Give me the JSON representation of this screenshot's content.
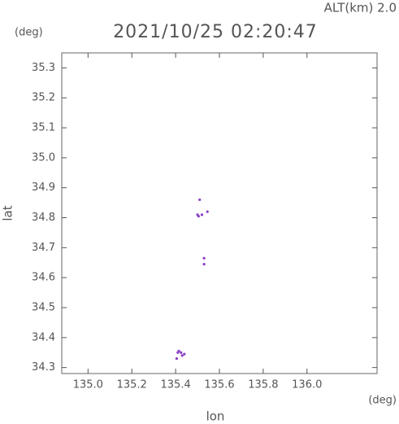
{
  "chart_data": {
    "type": "scatter",
    "title": "2021/10/25 02:20:47",
    "annotation": "ALT(km) 2.0",
    "x_label": "lon",
    "y_label": "lat",
    "x_unit": "(deg)",
    "y_unit": "(deg)",
    "xlim": [
      134.88,
      136.32
    ],
    "ylim": [
      34.28,
      35.35
    ],
    "xticks": [
      {
        "value": 135,
        "label": "135.0"
      },
      135.2,
      135.4,
      135.6,
      135.8,
      {
        "value": 136,
        "label": "136.0"
      }
    ],
    "yticks": [
      34.3,
      34.4,
      34.5,
      34.6,
      34.7,
      34.8,
      34.9,
      {
        "value": 35,
        "label": "35.0"
      },
      35.1,
      35.2,
      35.3
    ],
    "color": "#8a3fc8",
    "x": [
      135.51,
      135.5,
      135.505,
      135.52,
      135.545,
      135.53,
      135.53,
      135.41,
      135.415,
      135.425,
      135.44,
      135.405,
      135.43
    ],
    "y": [
      34.86,
      34.81,
      34.805,
      34.81,
      34.82,
      34.665,
      34.645,
      34.35,
      34.355,
      34.35,
      34.345,
      34.33,
      34.34
    ]
  }
}
